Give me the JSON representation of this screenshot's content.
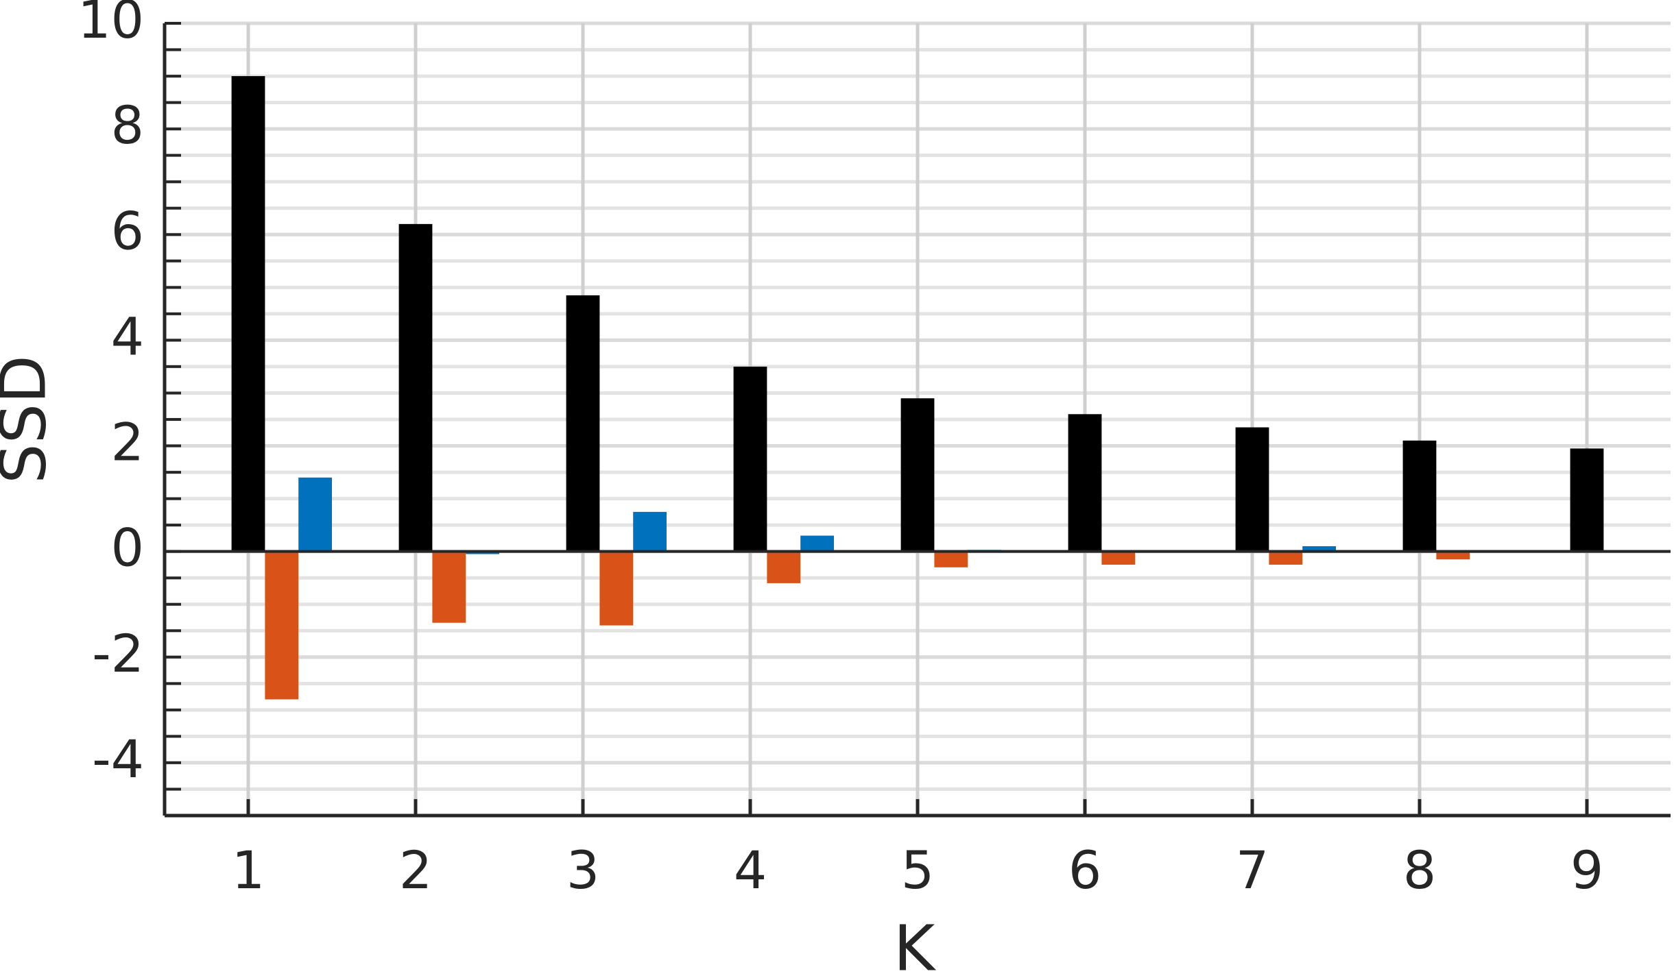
{
  "chart_data": {
    "type": "bar",
    "xlabel": "K",
    "ylabel": "SSD",
    "categories": [
      "1",
      "2",
      "3",
      "4",
      "5",
      "6",
      "7",
      "8",
      "9"
    ],
    "series": [
      {
        "color": "#000000",
        "values": [
          9.0,
          6.2,
          4.85,
          3.5,
          2.9,
          2.6,
          2.35,
          2.1,
          1.95
        ]
      },
      {
        "color": "#d95319",
        "values": [
          -2.8,
          -1.35,
          -1.4,
          -0.6,
          -0.3,
          -0.25,
          -0.25,
          -0.15,
          0
        ]
      },
      {
        "color": "#0072bd",
        "values": [
          1.4,
          -0.05,
          0.75,
          0.3,
          0.03,
          0,
          0.1,
          0,
          0
        ]
      }
    ],
    "ylim": [
      -5,
      10
    ],
    "yticks": [
      -4,
      -2,
      0,
      2,
      4,
      6,
      8,
      10
    ],
    "grid": true,
    "minor_ticks": 4
  }
}
